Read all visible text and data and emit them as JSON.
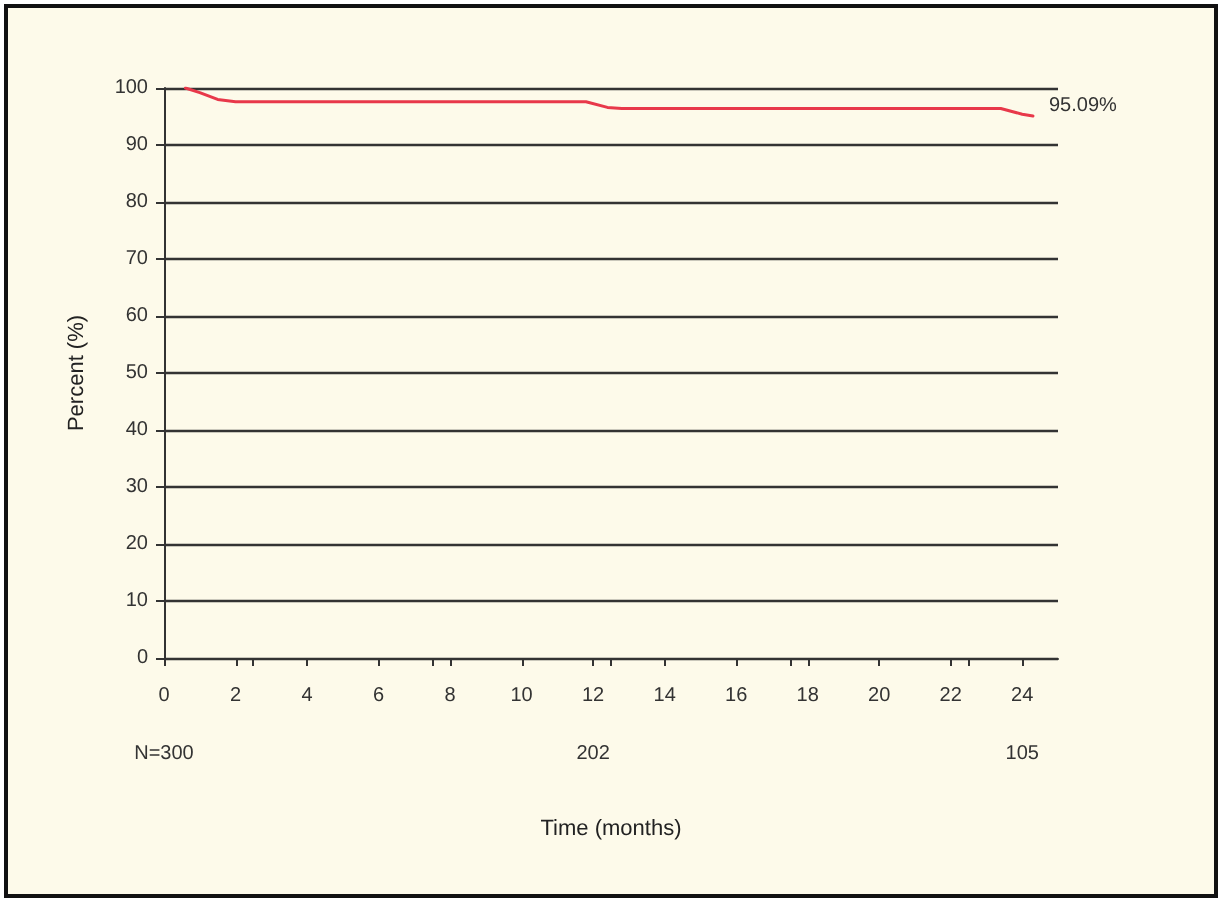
{
  "chart_data": {
    "type": "line",
    "xlabel": "Time (months)",
    "ylabel": "Percent (%)",
    "x": [
      0.6,
      1.0,
      1.5,
      2.0,
      11.8,
      12.4,
      12.8,
      23.4,
      24.0,
      24.3
    ],
    "series": [
      {
        "color": "#e8384a",
        "values": [
          100,
          99.2,
          98,
          97.6,
          97.6,
          96.6,
          96.4,
          96.4,
          95.4,
          95.09
        ]
      }
    ],
    "xlim": [
      0,
      25
    ],
    "xticks": [
      0,
      2,
      4,
      6,
      8,
      10,
      12,
      14,
      16,
      18,
      20,
      22,
      24
    ],
    "ylim": [
      0,
      100
    ],
    "yticks": [
      0,
      10,
      20,
      30,
      40,
      50,
      60,
      70,
      80,
      90,
      100
    ],
    "grid": "y",
    "marker": "none",
    "line_style": "solid",
    "annotations": [
      {
        "text": "95.09%",
        "x": 24.3,
        "y": 95.09
      },
      "N=300",
      "202",
      "105"
    ]
  }
}
